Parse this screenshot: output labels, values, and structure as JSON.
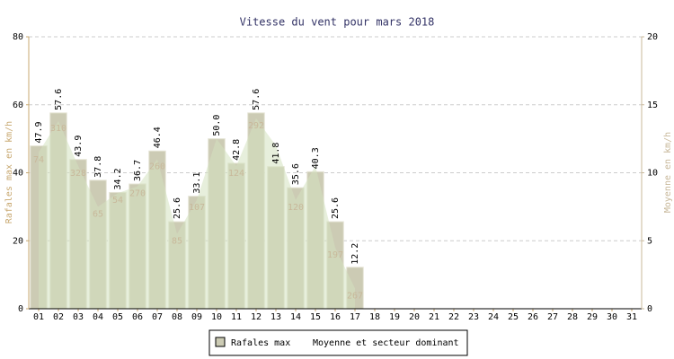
{
  "chart_data": {
    "type": "bar",
    "title": "Vitesse du vent pour mars 2018",
    "ylabel": "Rafales max en km/h",
    "y2label": "Moyenne en km/h",
    "categories": [
      "01",
      "02",
      "03",
      "04",
      "05",
      "06",
      "07",
      "08",
      "09",
      "10",
      "11",
      "12",
      "13",
      "14",
      "15",
      "16",
      "17",
      "18",
      "19",
      "20",
      "21",
      "22",
      "23",
      "24",
      "25",
      "26",
      "27",
      "28",
      "29",
      "30",
      "31"
    ],
    "series": [
      {
        "name": "Rafales max",
        "color": "#cccbb4",
        "values": [
          47.9,
          57.6,
          43.9,
          37.8,
          34.2,
          36.7,
          46.4,
          25.6,
          33.1,
          50.0,
          42.8,
          57.6,
          41.8,
          35.6,
          40.3,
          25.6,
          12.2,
          null,
          null,
          null,
          null,
          null,
          null,
          null,
          null,
          null,
          null,
          null,
          null,
          null,
          null
        ],
        "value_labels": [
          "47.9",
          "57.6",
          "43.9",
          "37.8",
          "34.2",
          "36.7",
          "46.4",
          "25.6",
          "33.1",
          "50.0",
          "42.8",
          "57.6",
          "41.8",
          "35.6",
          "40.3",
          "25.6",
          "12.2",
          null,
          null,
          null,
          null,
          null,
          null,
          null,
          null,
          null,
          null,
          null,
          null,
          null,
          null
        ]
      },
      {
        "name": "Moyenne et secteur dominant",
        "color": "#d4e2c0",
        "axis": "y2",
        "values": [
          11.5,
          13.8,
          10.5,
          7.5,
          8.5,
          9,
          11,
          5.5,
          8,
          12.5,
          10.5,
          14,
          12,
          8,
          10.5,
          4.5,
          1.5,
          null,
          null,
          null,
          null,
          null,
          null,
          null,
          null,
          null,
          null,
          null,
          null,
          null,
          null
        ],
        "sector_labels": [
          74,
          310,
          328,
          65,
          54,
          270,
          260,
          85,
          107,
          null,
          124,
          292,
          null,
          120,
          null,
          197,
          267,
          null,
          null,
          null,
          null,
          null,
          null,
          null,
          null,
          null,
          null,
          null,
          null,
          null,
          null
        ]
      }
    ],
    "ylim": [
      0,
      80
    ],
    "yticks": [
      0,
      20,
      40,
      60,
      80
    ],
    "y2lim": [
      0,
      20
    ],
    "y2ticks": [
      0,
      5,
      10,
      15,
      20
    ],
    "grid": true
  }
}
